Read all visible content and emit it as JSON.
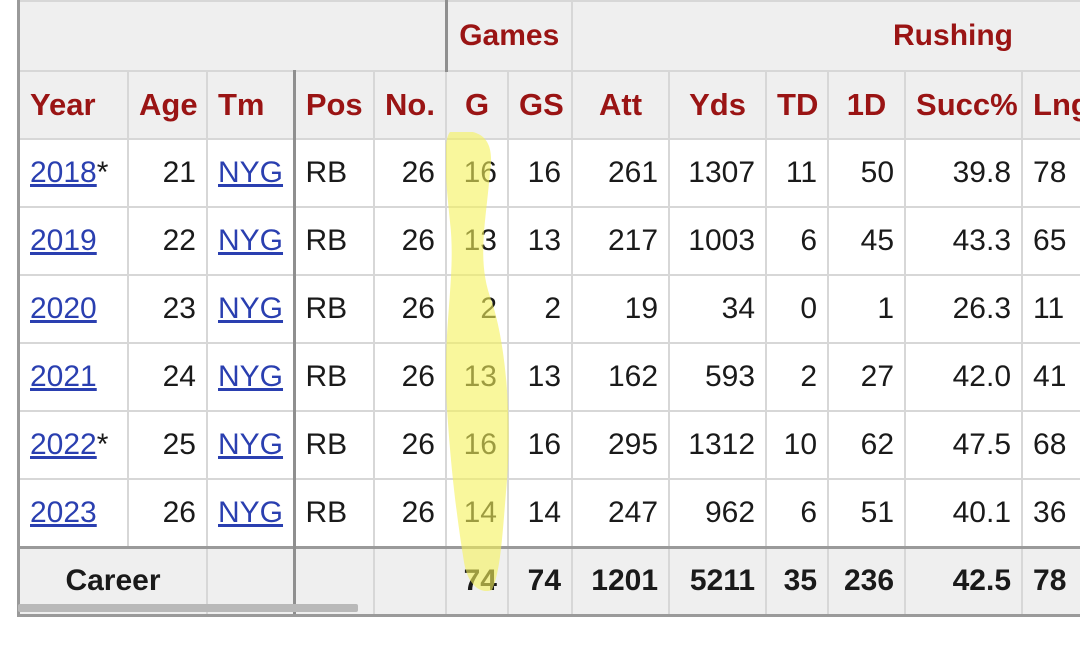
{
  "over_header": {
    "games": "Games",
    "rushing": "Rushing"
  },
  "columns": [
    "Year",
    "Age",
    "Tm",
    "Pos",
    "No.",
    "G",
    "GS",
    "Att",
    "Yds",
    "TD",
    "1D",
    "Succ%",
    "Lng"
  ],
  "rows": [
    {
      "year": "2018",
      "star": "*",
      "age": "21",
      "tm": "NYG",
      "pos": "RB",
      "no": "26",
      "g": "16",
      "gs": "16",
      "att": "261",
      "yds": "1307",
      "td": "11",
      "fd": "50",
      "succ": "39.8",
      "lng": "78"
    },
    {
      "year": "2019",
      "star": "",
      "age": "22",
      "tm": "NYG",
      "pos": "RB",
      "no": "26",
      "g": "13",
      "gs": "13",
      "att": "217",
      "yds": "1003",
      "td": "6",
      "fd": "45",
      "succ": "43.3",
      "lng": "65"
    },
    {
      "year": "2020",
      "star": "",
      "age": "23",
      "tm": "NYG",
      "pos": "RB",
      "no": "26",
      "g": "2",
      "gs": "2",
      "att": "19",
      "yds": "34",
      "td": "0",
      "fd": "1",
      "succ": "26.3",
      "lng": "11"
    },
    {
      "year": "2021",
      "star": "",
      "age": "24",
      "tm": "NYG",
      "pos": "RB",
      "no": "26",
      "g": "13",
      "gs": "13",
      "att": "162",
      "yds": "593",
      "td": "2",
      "fd": "27",
      "succ": "42.0",
      "lng": "41"
    },
    {
      "year": "2022",
      "star": "*",
      "age": "25",
      "tm": "NYG",
      "pos": "RB",
      "no": "26",
      "g": "16",
      "gs": "16",
      "att": "295",
      "yds": "1312",
      "td": "10",
      "fd": "62",
      "succ": "47.5",
      "lng": "68"
    },
    {
      "year": "2023",
      "star": "",
      "age": "26",
      "tm": "NYG",
      "pos": "RB",
      "no": "26",
      "g": "14",
      "gs": "14",
      "att": "247",
      "yds": "962",
      "td": "6",
      "fd": "51",
      "succ": "40.1",
      "lng": "36"
    }
  ],
  "career": {
    "label": "Career",
    "g": "74",
    "gs": "74",
    "att": "1201",
    "yds": "5211",
    "td": "35",
    "fd": "236",
    "succ": "42.5",
    "lng": "78"
  },
  "highlight_color": "#f5f25a"
}
